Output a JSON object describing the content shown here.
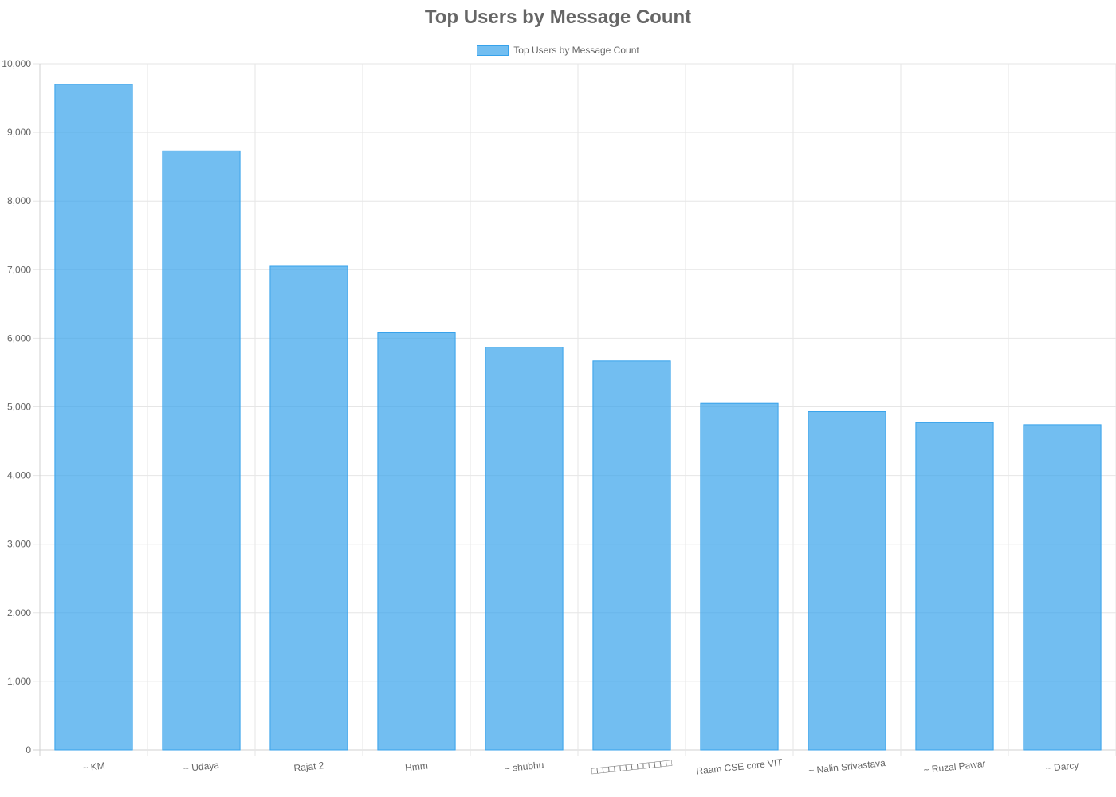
{
  "chart_data": {
    "type": "bar",
    "title": "Top Users by Message Count",
    "legend": {
      "position": "top",
      "entries": [
        "Top Users by Message Count"
      ]
    },
    "categories": [
      "~ KM",
      "~ Udaya",
      "Rajat 2",
      "Hmm",
      "~ shubhu",
      "□□□□□□□□□□□□□□",
      "Raam CSE core VIT",
      "~ Nalin Srivastava",
      "~ Ruzal Pawar",
      "~ Darcy"
    ],
    "series": [
      {
        "name": "Top Users by Message Count",
        "values": [
          9700,
          8730,
          7050,
          6080,
          5870,
          5670,
          5050,
          4930,
          4770,
          4740
        ]
      }
    ],
    "ylim": [
      0,
      10000
    ],
    "yticks": [
      "0",
      "1,000",
      "2,000",
      "3,000",
      "4,000",
      "5,000",
      "6,000",
      "7,000",
      "8,000",
      "9,000",
      "10,000"
    ],
    "grid": true,
    "colors": {
      "bar_fill": "#36a2eb",
      "bar_border": "#36a2eb",
      "grid": "#e6e6e6",
      "text": "#666666"
    }
  }
}
